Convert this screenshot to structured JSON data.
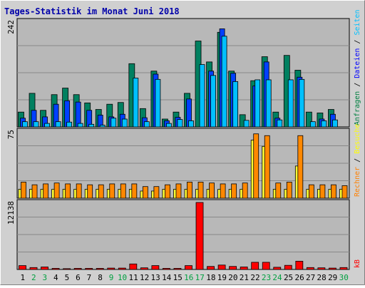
{
  "chart_data": {
    "type": "bar",
    "title": "Tages-Statistik im Monat Juni 2018",
    "categories": [
      "1",
      "2",
      "3",
      "4",
      "5",
      "6",
      "7",
      "8",
      "9",
      "10",
      "11",
      "12",
      "13",
      "14",
      "15",
      "16",
      "17",
      "18",
      "19",
      "20",
      "21",
      "22",
      "23",
      "24",
      "25",
      "26",
      "27",
      "28",
      "29",
      "30"
    ],
    "weekend_days": [
      "2",
      "3",
      "9",
      "10",
      "16",
      "17",
      "23",
      "24",
      "30"
    ],
    "panels": [
      {
        "ylabel_segments": [
          {
            "text": "Anfragen",
            "color": "#008040"
          },
          {
            "text": " / ",
            "color": "#000000"
          },
          {
            "text": "Dateien",
            "color": "#0000ff"
          },
          {
            "text": " / ",
            "color": "#000000"
          },
          {
            "text": "Seiten",
            "color": "#00c0ff"
          }
        ],
        "ymax_label": "242",
        "ylim": [
          0,
          242
        ],
        "series": [
          {
            "name": "Anfragen",
            "color": "#008060",
            "values": [
              34,
              77,
              38,
              74,
              89,
              74,
              55,
              40,
              52,
              56,
              145,
              42,
              128,
              18,
              34,
              77,
              197,
              149,
              217,
              128,
              28,
              106,
              161,
              34,
              164,
              130,
              34,
              32,
              40,
              0
            ]
          },
          {
            "name": "Dateien",
            "color": "#0040ff",
            "values": [
              20,
              38,
              23,
              52,
              60,
              57,
              38,
              27,
              23,
              29,
              0,
              21,
              121,
              14,
              22,
              64,
              0,
              128,
              225,
              123,
              0,
              94,
              149,
              20,
              0,
              114,
              0,
              18,
              29,
              0
            ]
          },
          {
            "name": "Seiten",
            "color": "#00c0ff",
            "values": [
              12,
              12,
              8,
              12,
              11,
              8,
              6,
              4,
              20,
              18,
              112,
              12,
              109,
              8,
              17,
              14,
              143,
              118,
              208,
              104,
              15,
              108,
              108,
              16,
              108,
              109,
              12,
              14,
              16,
              0
            ]
          }
        ]
      },
      {
        "ylabel_segments": [
          {
            "text": "Rechner",
            "color": "#ff8000"
          },
          {
            "text": " / ",
            "color": "#000000"
          },
          {
            "text": "Besuche",
            "color": "#ffff00"
          }
        ],
        "ymax_label": "75",
        "ylim": [
          0,
          75
        ],
        "series": [
          {
            "name": "Besuche",
            "color": "#ffff33",
            "values": [
              10,
              10,
              10,
              10,
              10,
              10,
              10,
              10,
              10,
              10,
              10,
              8,
              8,
              10,
              10,
              10,
              10,
              10,
              10,
              10,
              10,
              65,
              58,
              10,
              10,
              36,
              10,
              10,
              10,
              10
            ]
          },
          {
            "name": "Rechner",
            "color": "#ff8800",
            "values": [
              18,
              15,
              16,
              17,
              16,
              16,
              15,
              15,
              16,
              16,
              16,
              13,
              13,
              15,
              16,
              18,
              18,
              17,
              16,
              16,
              17,
              72,
              70,
              17,
              18,
              70,
              15,
              15,
              15,
              14
            ]
          }
        ]
      },
      {
        "ylabel_segments": [
          {
            "text": "kB",
            "color": "#ff0000"
          }
        ],
        "ymax_label": "12138",
        "ylim": [
          0,
          12138
        ],
        "series": [
          {
            "name": "kB",
            "color": "#ff0000",
            "values": [
              700,
              350,
              450,
              200,
              150,
              200,
              200,
              200,
              250,
              250,
              1000,
              300,
              700,
              200,
              200,
              700,
              12138,
              550,
              800,
              550,
              450,
              1300,
              1300,
              400,
              750,
              1500,
              350,
              300,
              250,
              350
            ]
          }
        ]
      }
    ],
    "grid": true,
    "legend": "right-vertical"
  }
}
